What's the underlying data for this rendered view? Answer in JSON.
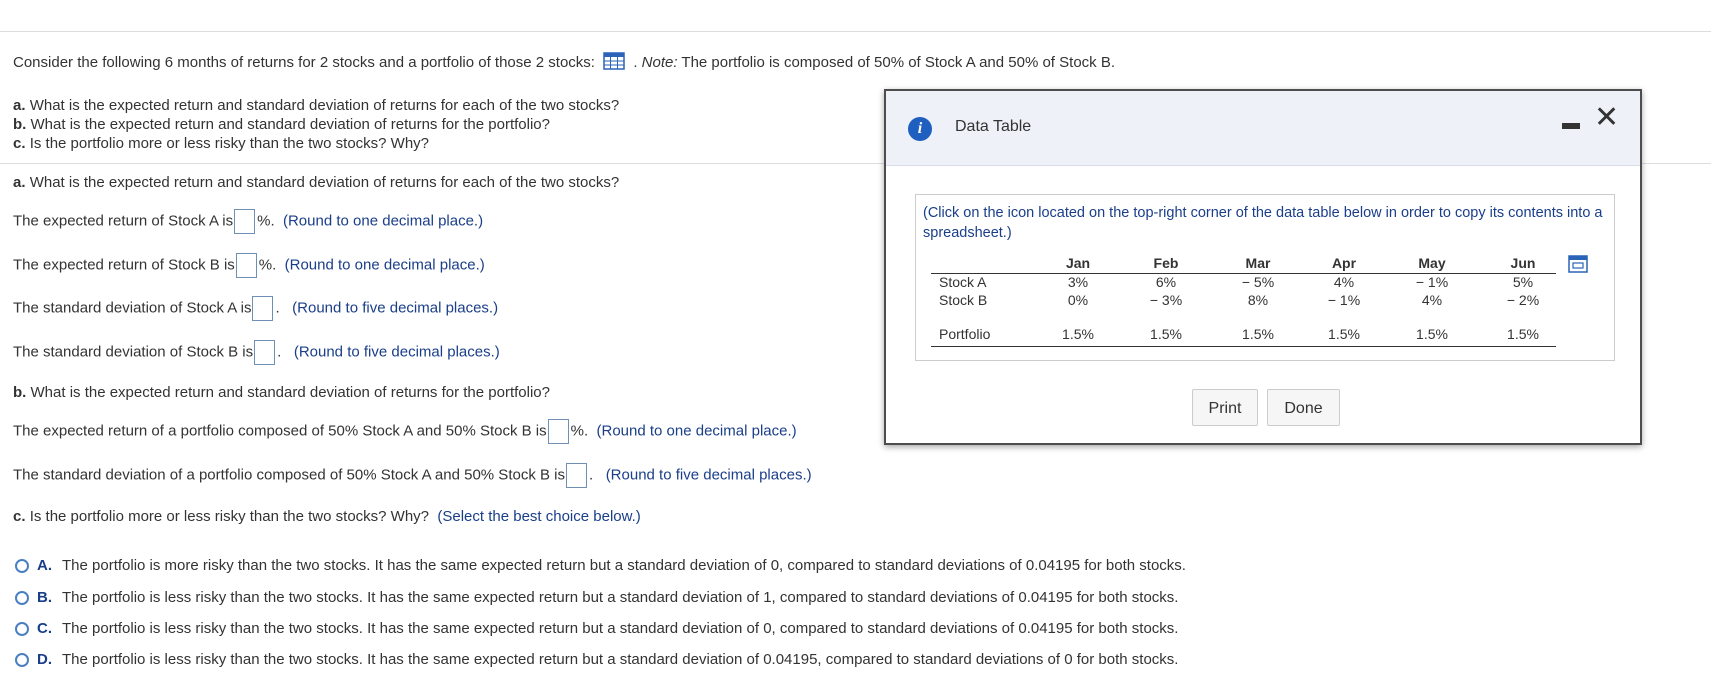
{
  "intro": {
    "text": "Consider the following 6 months of returns for 2 stocks and a portfolio of those 2 stocks:",
    "note_label": "Note:",
    "note_text": "The portfolio is composed of 50% of Stock A and 50% of Stock B."
  },
  "questions": [
    {
      "letter": "a.",
      "text": "What is the expected return and standard deviation of returns for each of the two stocks?"
    },
    {
      "letter": "b.",
      "text": "What is the expected return and standard deviation of returns for the portfolio?"
    },
    {
      "letter": "c.",
      "text": "Is the portfolio more or less risky than the two stocks? Why?"
    }
  ],
  "part_a": {
    "heading_letter": "a.",
    "heading_text": "What is the expected return and standard deviation of returns for each of the two stocks?",
    "line1_text": "The expected return of Stock A is",
    "line1_suffix": "%.",
    "line1_hint": "(Round to one decimal place.)",
    "line2_text": "The expected return of Stock B is",
    "line2_suffix": "%.",
    "line2_hint": "(Round to one decimal place.)",
    "line3_text": "The standard deviation of Stock A is",
    "line3_suffix": ".",
    "line3_hint": "(Round to five decimal places.)",
    "line4_text": "The standard deviation of Stock B is",
    "line4_suffix": ".",
    "line4_hint": "(Round to five decimal places.)"
  },
  "part_b": {
    "heading_letter": "b.",
    "heading_text": "What is the expected return and standard deviation of returns for the portfolio?",
    "line1_text": "The expected return of a portfolio composed of 50% Stock A and 50% Stock B is",
    "line1_suffix": "%.",
    "line1_hint": "(Round to one decimal place.)",
    "line2_text": "The standard deviation of a portfolio composed of 50% Stock A and 50% Stock B is",
    "line2_suffix": ".",
    "line2_hint": "(Round to five decimal places.)"
  },
  "part_c": {
    "heading_letter": "c.",
    "heading_text": "Is the portfolio more or less risky than the two stocks? Why?",
    "heading_hint": "(Select the best choice below.)",
    "options": [
      {
        "letter": "A.",
        "text": "The portfolio is more risky than the two stocks. It has the same expected return but a standard deviation of 0, compared to standard deviations of 0.04195 for both stocks."
      },
      {
        "letter": "B.",
        "text": "The portfolio is less risky than the two stocks. It has the same expected return but a standard deviation of 1, compared to standard deviations of 0.04195 for both stocks."
      },
      {
        "letter": "C.",
        "text": "The portfolio is less risky than the two stocks. It has the same expected return but a standard deviation of 0, compared to standard deviations of 0.04195 for both stocks."
      },
      {
        "letter": "D.",
        "text": "The portfolio is less risky than the two stocks. It has the same expected return but a standard deviation of 0.04195, compared to standard deviations of 0 for both stocks."
      }
    ]
  },
  "dialog": {
    "title": "Data Table",
    "note": "(Click on the icon located on the top-right corner of the data table below in order to copy its contents into a spreadsheet.)",
    "table": {
      "months": [
        "Jan",
        "Feb",
        "Mar",
        "Apr",
        "May",
        "Jun"
      ],
      "rows": [
        {
          "label": "Stock A",
          "values": [
            "3%",
            "6%",
            "− 5%",
            "4%",
            "− 1%",
            "5%"
          ]
        },
        {
          "label": "Stock B",
          "values": [
            "0%",
            "− 3%",
            "8%",
            "− 1%",
            "4%",
            "− 2%"
          ]
        },
        {
          "label": "Portfolio",
          "values": [
            "1.5%",
            "1.5%",
            "1.5%",
            "1.5%",
            "1.5%",
            "1.5%"
          ]
        }
      ]
    },
    "print_label": "Print",
    "done_label": "Done"
  },
  "colors": {
    "hint": "#1a3e8a",
    "radio": "#4a7fc1",
    "info_icon": "#1f5fbf"
  }
}
